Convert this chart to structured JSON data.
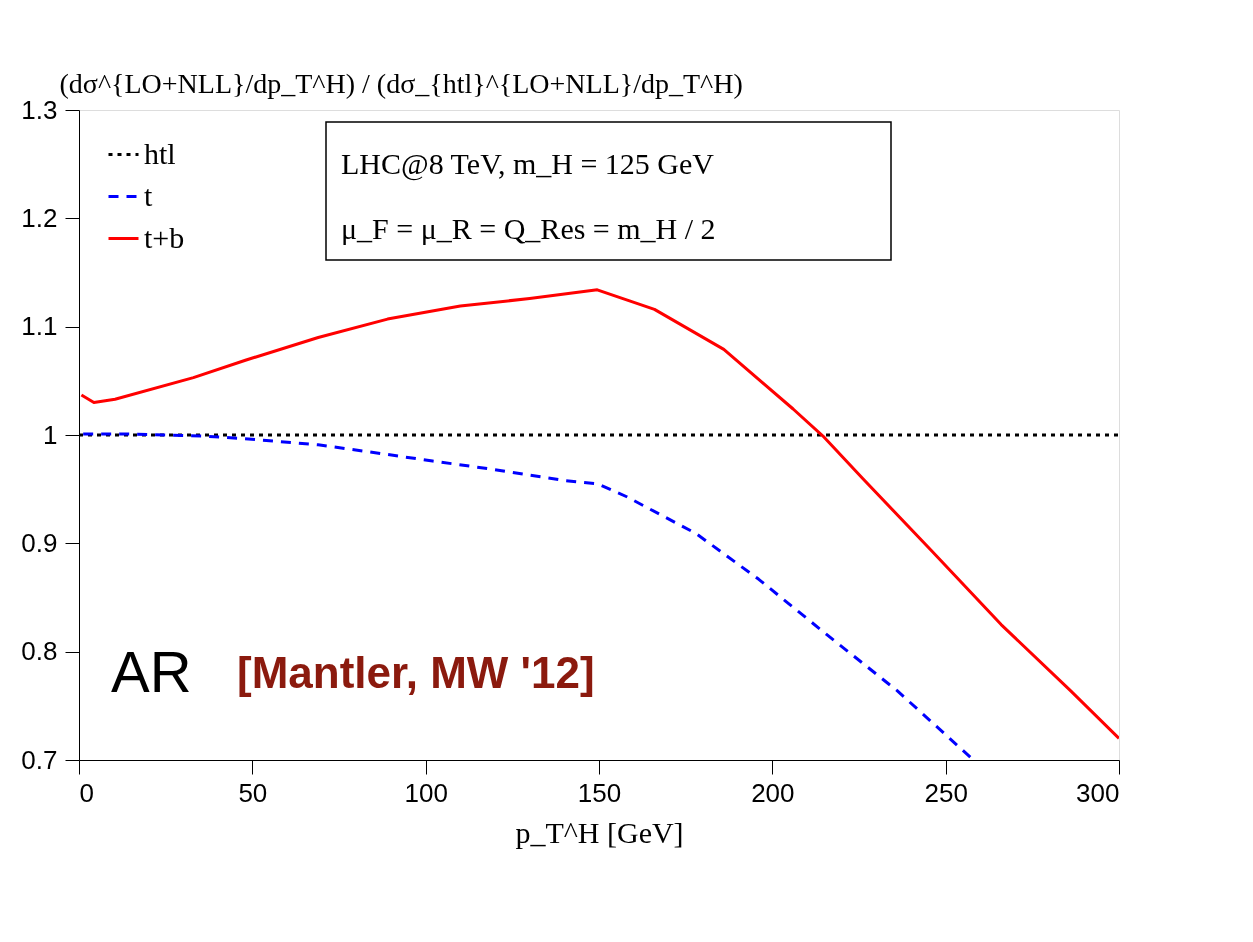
{
  "chart_data": {
    "type": "line",
    "ylabel": "(dσ^{LO+NLL}/dp_T^H) / (dσ_{htl}^{LO+NLL}/dp_T^H)",
    "xlabel": "p_T^H [GeV]",
    "xlim": [
      0,
      300
    ],
    "xticks": [
      0,
      50,
      100,
      150,
      200,
      250,
      300
    ],
    "ylim": [
      0.7,
      1.3
    ],
    "yticks": [
      0.7,
      0.8,
      0.9,
      1,
      1.1,
      1.2,
      1.3
    ],
    "grid": false,
    "legend": "top left",
    "marker": "none",
    "series": [
      {
        "name": "htl",
        "color": "#000000",
        "line_style": "dotted",
        "x": [
          0,
          300
        ],
        "values": [
          1,
          1
        ]
      },
      {
        "name": "t",
        "color": "#0000ff",
        "line_style": "dashed",
        "x": [
          1.2,
          13.5,
          36,
          46,
          69,
          89,
          102,
          120,
          140,
          149.5,
          158,
          178,
          196,
          216,
          236,
          258
        ],
        "values": [
          1.001,
          1.001,
          0.999,
          0.997,
          0.991,
          0.982,
          0.976,
          0.968,
          0.958,
          0.955,
          0.943,
          0.909,
          0.867,
          0.815,
          0.764,
          0.7
        ]
      },
      {
        "name": "t+b",
        "color": "#ff0000",
        "line_style": "solid",
        "x": [
          0.7,
          4.3,
          10.4,
          33,
          48,
          69,
          89,
          110,
          130,
          149.5,
          166,
          186,
          206,
          214.6,
          226,
          246,
          266,
          286,
          300
        ],
        "values": [
          1.037,
          1.03,
          1.033,
          1.053,
          1.069,
          1.09,
          1.107,
          1.119,
          1.126,
          1.134,
          1.116,
          1.079,
          1.024,
          0.999,
          0.96,
          0.893,
          0.825,
          0.764,
          0.72
        ]
      }
    ],
    "annotations": [
      "LHC@8 TeV, m_H = 125 GeV",
      "μ_F = μ_R = Q_Res = m_H / 2",
      "AR",
      "[Mantler, MW '12]"
    ]
  }
}
